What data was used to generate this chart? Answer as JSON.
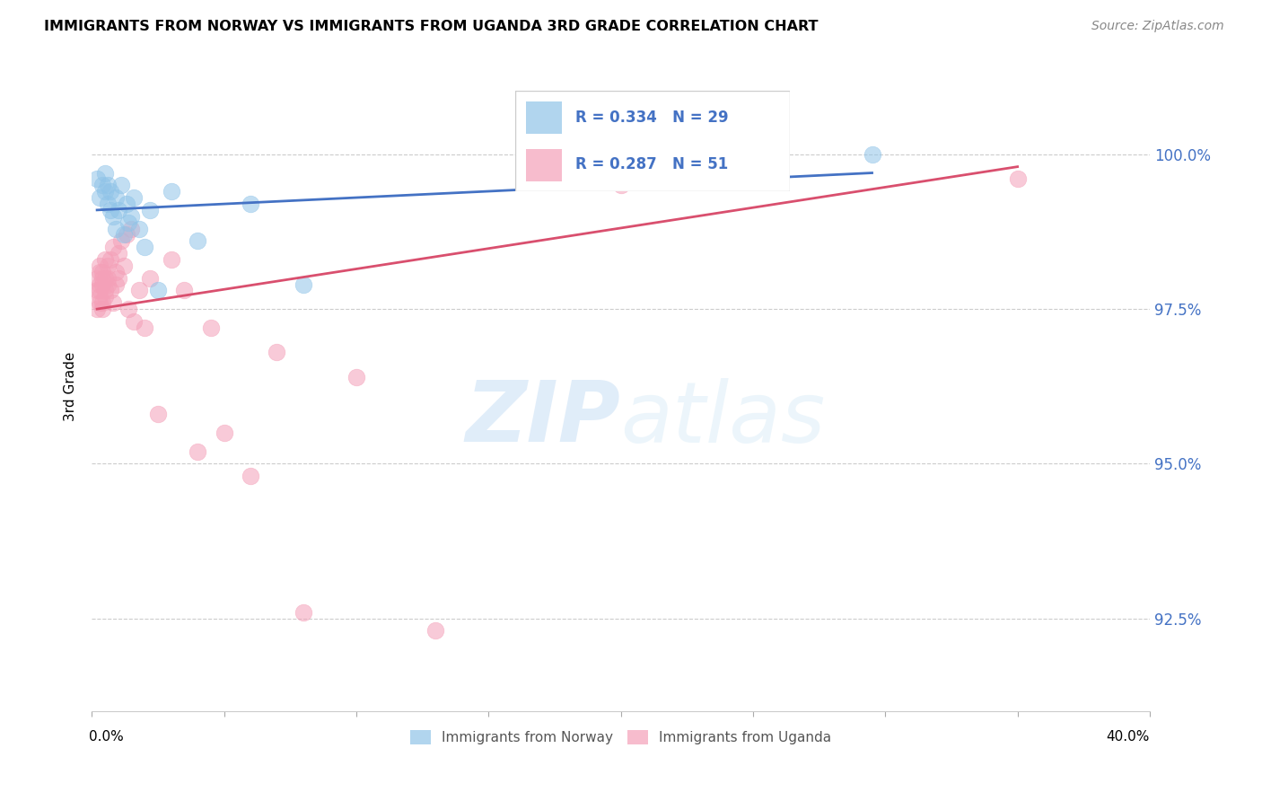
{
  "title": "IMMIGRANTS FROM NORWAY VS IMMIGRANTS FROM UGANDA 3RD GRADE CORRELATION CHART",
  "source": "Source: ZipAtlas.com",
  "ylabel": "3rd Grade",
  "y_ticks": [
    92.5,
    95.0,
    97.5,
    100.0
  ],
  "y_tick_labels": [
    "92.5%",
    "95.0%",
    "97.5%",
    "100.0%"
  ],
  "xlim": [
    0.0,
    0.4
  ],
  "ylim": [
    91.0,
    101.5
  ],
  "norway_color": "#90c4e8",
  "uganda_color": "#f4a0b8",
  "norway_line_color": "#4472c4",
  "uganda_line_color": "#d94f6e",
  "norway_R": 0.334,
  "norway_N": 29,
  "uganda_R": 0.287,
  "uganda_N": 51,
  "legend_norway": "Immigrants from Norway",
  "legend_uganda": "Immigrants from Uganda",
  "watermark_zip": "ZIP",
  "watermark_atlas": "atlas",
  "legend_text_color": "#4472c4",
  "norway_x": [
    0.002,
    0.003,
    0.004,
    0.005,
    0.005,
    0.006,
    0.006,
    0.007,
    0.007,
    0.008,
    0.009,
    0.009,
    0.01,
    0.011,
    0.012,
    0.013,
    0.014,
    0.015,
    0.016,
    0.018,
    0.02,
    0.022,
    0.025,
    0.03,
    0.04,
    0.06,
    0.08,
    0.205,
    0.295
  ],
  "norway_y": [
    99.6,
    99.3,
    99.5,
    99.4,
    99.7,
    99.2,
    99.5,
    99.1,
    99.4,
    99.0,
    98.8,
    99.3,
    99.1,
    99.5,
    98.7,
    99.2,
    98.9,
    99.0,
    99.3,
    98.8,
    98.5,
    99.1,
    97.8,
    99.4,
    98.6,
    99.2,
    97.9,
    100.0,
    100.0
  ],
  "uganda_x": [
    0.002,
    0.002,
    0.002,
    0.003,
    0.003,
    0.003,
    0.003,
    0.003,
    0.003,
    0.004,
    0.004,
    0.004,
    0.004,
    0.004,
    0.005,
    0.005,
    0.005,
    0.005,
    0.006,
    0.006,
    0.006,
    0.007,
    0.007,
    0.008,
    0.008,
    0.009,
    0.009,
    0.01,
    0.01,
    0.011,
    0.012,
    0.013,
    0.014,
    0.015,
    0.016,
    0.018,
    0.02,
    0.022,
    0.025,
    0.03,
    0.035,
    0.04,
    0.045,
    0.05,
    0.06,
    0.07,
    0.08,
    0.1,
    0.13,
    0.2,
    0.35
  ],
  "uganda_y": [
    97.8,
    97.5,
    98.0,
    97.9,
    97.6,
    98.1,
    97.7,
    98.2,
    97.8,
    97.9,
    97.5,
    98.0,
    97.6,
    98.1,
    98.0,
    97.7,
    98.3,
    97.8,
    98.2,
    97.9,
    98.0,
    97.8,
    98.3,
    98.5,
    97.6,
    98.1,
    97.9,
    98.4,
    98.0,
    98.6,
    98.2,
    98.7,
    97.5,
    98.8,
    97.3,
    97.8,
    97.2,
    98.0,
    95.8,
    98.3,
    97.8,
    95.2,
    97.2,
    95.5,
    94.8,
    96.8,
    92.6,
    96.4,
    92.3,
    99.5,
    99.6
  ],
  "norway_trendline_x": [
    0.002,
    0.295
  ],
  "norway_trendline_y": [
    99.1,
    99.7
  ],
  "uganda_trendline_x": [
    0.002,
    0.35
  ],
  "uganda_trendline_y": [
    97.5,
    99.8
  ]
}
